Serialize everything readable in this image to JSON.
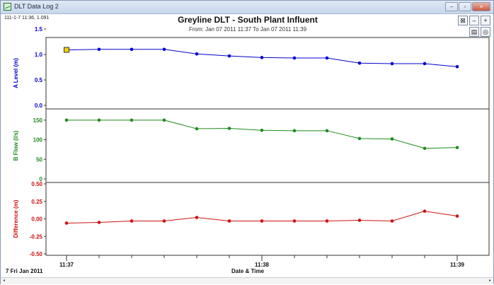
{
  "window": {
    "title": "DLT Data Log 2",
    "buttons": {
      "minimize": "–",
      "maximize": "▫",
      "close": "×"
    }
  },
  "cursor_readout": "111-1-7 11:36, 1.091",
  "toolbar": {
    "zoom_fit_icon": "⊠",
    "zoom_out_icon": "–",
    "zoom_in_icon": "+",
    "page_icon": "▤",
    "settings_icon": "◎"
  },
  "date_label": "7 Fri Jan 2011",
  "chart_data": [
    {
      "type": "line",
      "title": "Greyline DLT - South Plant Influent",
      "subtitle": "From: Jan 07 2011 11:37 To Jan 07 2011 11:39",
      "xlabel": "Date & Time",
      "ylabel": "A Level (m)",
      "color": "#0000cc",
      "ylim": [
        0,
        1.5
      ],
      "yticks": [
        "0.0",
        "0.5",
        "1.0",
        "1.5"
      ],
      "x": [
        0,
        1,
        2,
        3,
        4,
        5,
        6,
        7,
        8,
        9,
        10,
        11,
        12
      ],
      "values": [
        1.09,
        1.1,
        1.1,
        1.1,
        1.01,
        0.97,
        0.94,
        0.93,
        0.93,
        0.83,
        0.82,
        0.82,
        0.76
      ],
      "selected_index": 0
    },
    {
      "type": "line",
      "ylabel": "B Flow (l/s)",
      "color": "#1e8b1e",
      "ylim": [
        0,
        175
      ],
      "yticks": [
        "0",
        "50",
        "100",
        "150"
      ],
      "x": [
        0,
        1,
        2,
        3,
        4,
        5,
        6,
        7,
        8,
        9,
        10,
        11,
        12
      ],
      "values": [
        150,
        150,
        150,
        150,
        128,
        129,
        124,
        123,
        123,
        103,
        102,
        78,
        80
      ]
    },
    {
      "type": "line",
      "ylabel": "Difference (m)",
      "color": "#cc1111",
      "ylim": [
        -0.5,
        0.5
      ],
      "yticks": [
        "-0.50",
        "-0.25",
        "0.00",
        "0.25",
        "0.50"
      ],
      "x": [
        0,
        1,
        2,
        3,
        4,
        5,
        6,
        7,
        8,
        9,
        10,
        11,
        12
      ],
      "values": [
        -0.06,
        -0.05,
        -0.03,
        -0.03,
        0.02,
        -0.03,
        -0.03,
        -0.03,
        -0.03,
        -0.02,
        -0.03,
        0.11,
        0.04
      ]
    }
  ],
  "x_axis": {
    "ticks": [
      {
        "x": 0,
        "label": "11:37"
      },
      {
        "x": 6,
        "label": "11:38"
      },
      {
        "x": 12,
        "label": "11:39"
      }
    ]
  }
}
